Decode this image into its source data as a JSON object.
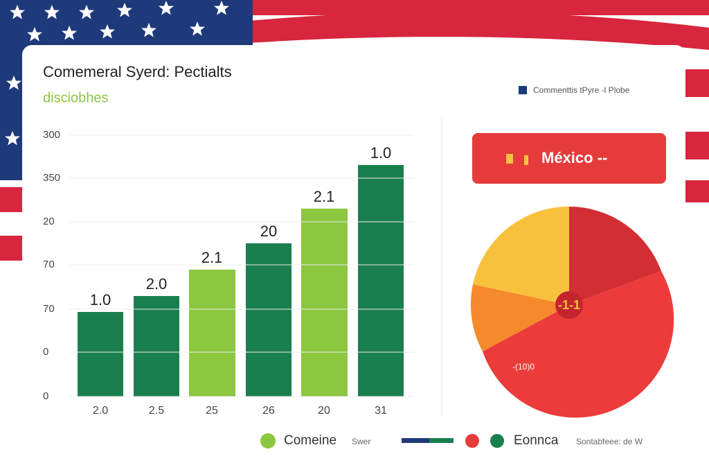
{
  "header": {
    "title": "Comemeral Syerd: Pectialts",
    "subtitle": "disciobhes"
  },
  "top_legend": {
    "label": "Commenttis tPyre -l Plobe"
  },
  "bar_panel": {
    "y_labels": [
      "300",
      "350",
      "20",
      "70",
      "70",
      "0",
      "0"
    ],
    "bar_labels": [
      "1.0",
      "2.0",
      "2.1",
      "20",
      "2.1",
      "1.0"
    ],
    "x_labels": [
      "2.0",
      "2.5",
      "25",
      "26",
      "20",
      "31"
    ]
  },
  "pie_panel": {
    "banner": "México --",
    "center_label": "-1-1",
    "side_label": "-(10)0"
  },
  "bottom_legend": {
    "first": "Comeine",
    "first_note": "Swer",
    "second": "Eonnca",
    "second_note": "Sontabfeee: de W"
  }
}
